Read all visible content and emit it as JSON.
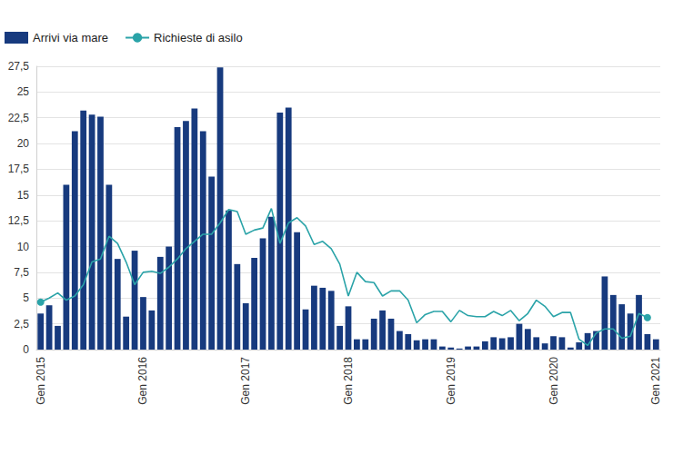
{
  "chart_data": {
    "type": "bar",
    "categories": [
      "Gen 2015",
      null,
      null,
      null,
      null,
      null,
      null,
      null,
      null,
      null,
      null,
      null,
      "Gen 2016",
      null,
      null,
      null,
      null,
      null,
      null,
      null,
      null,
      null,
      null,
      null,
      "Gen 2017",
      null,
      null,
      null,
      null,
      null,
      null,
      null,
      null,
      null,
      null,
      null,
      "Gen 2018",
      null,
      null,
      null,
      null,
      null,
      null,
      null,
      null,
      null,
      null,
      null,
      "Gen 2019",
      null,
      null,
      null,
      null,
      null,
      null,
      null,
      null,
      null,
      null,
      null,
      "Gen 2020",
      null,
      null,
      null,
      null,
      null,
      null,
      null,
      null,
      null,
      null,
      null,
      "Gen 2021"
    ],
    "series": [
      {
        "name": "Arrivi via mare",
        "type": "bar",
        "color": "#173a7e",
        "values": [
          3.5,
          4.3,
          2.3,
          16,
          21.2,
          23.2,
          22.8,
          22.6,
          16,
          8.8,
          3.2,
          9.6,
          5.1,
          3.8,
          9.0,
          10,
          21.6,
          22.2,
          23.4,
          21.2,
          16.8,
          27.4,
          13.5,
          8.3,
          4.5,
          8.9,
          10.8,
          12.9,
          23,
          23.5,
          11.4,
          3.9,
          6.2,
          6,
          5.7,
          2.3,
          4.2,
          1,
          1,
          3,
          3.8,
          3,
          1.8,
          1.5,
          0.9,
          1,
          1,
          0.3,
          0.2,
          0.1,
          0.3,
          0.3,
          0.8,
          1.2,
          1.1,
          1.2,
          2.5,
          2,
          1.2,
          0.6,
          1.3,
          1.2,
          0.2,
          0.7,
          1.6,
          1.8,
          7.1,
          5.3,
          4.4,
          3.5,
          5.3,
          1.5,
          1.0
        ]
      },
      {
        "name": "Richieste di asilo",
        "type": "line",
        "color": "#2aa3a8",
        "marker": "circle",
        "values": [
          4.6,
          5.0,
          5.5,
          4.8,
          5.2,
          6.3,
          8.5,
          8.8,
          11,
          10.3,
          8.5,
          6.3,
          7.5,
          7.6,
          7.4,
          8.0,
          8.8,
          9.8,
          10.5,
          11.2,
          11.2,
          12.3,
          13.6,
          13.4,
          11.2,
          11.6,
          11.8,
          13.7,
          10.3,
          12.3,
          12.8,
          12.0,
          10.2,
          10.5,
          9.8,
          8.3,
          5.2,
          7.5,
          6.6,
          6.5,
          5.2,
          5.7,
          5.7,
          4.8,
          2.6,
          3.4,
          3.7,
          3.7,
          2.7,
          3.8,
          3.3,
          3.2,
          3.2,
          3.7,
          3.3,
          3.8,
          2.8,
          3.5,
          4.8,
          4.2,
          3.2,
          3.6,
          3.6,
          1.0,
          0.4,
          1.6,
          2.0,
          2.0,
          1.1,
          1.3,
          3.5,
          3.1,
          null
        ]
      }
    ],
    "ylim": [
      0,
      27.5
    ],
    "yticks": [
      0,
      {
        "value": 2.5,
        "label": "2,5"
      },
      5,
      {
        "value": 7.5,
        "label": "7,5"
      },
      10,
      {
        "value": 12.5,
        "label": "12,5"
      },
      15,
      {
        "value": 17.5,
        "label": "17,5"
      },
      20,
      {
        "value": 22.5,
        "label": "22,5"
      },
      25,
      {
        "value": 27.5,
        "label": "27,5"
      }
    ],
    "grid": true,
    "legend": "top-left"
  }
}
